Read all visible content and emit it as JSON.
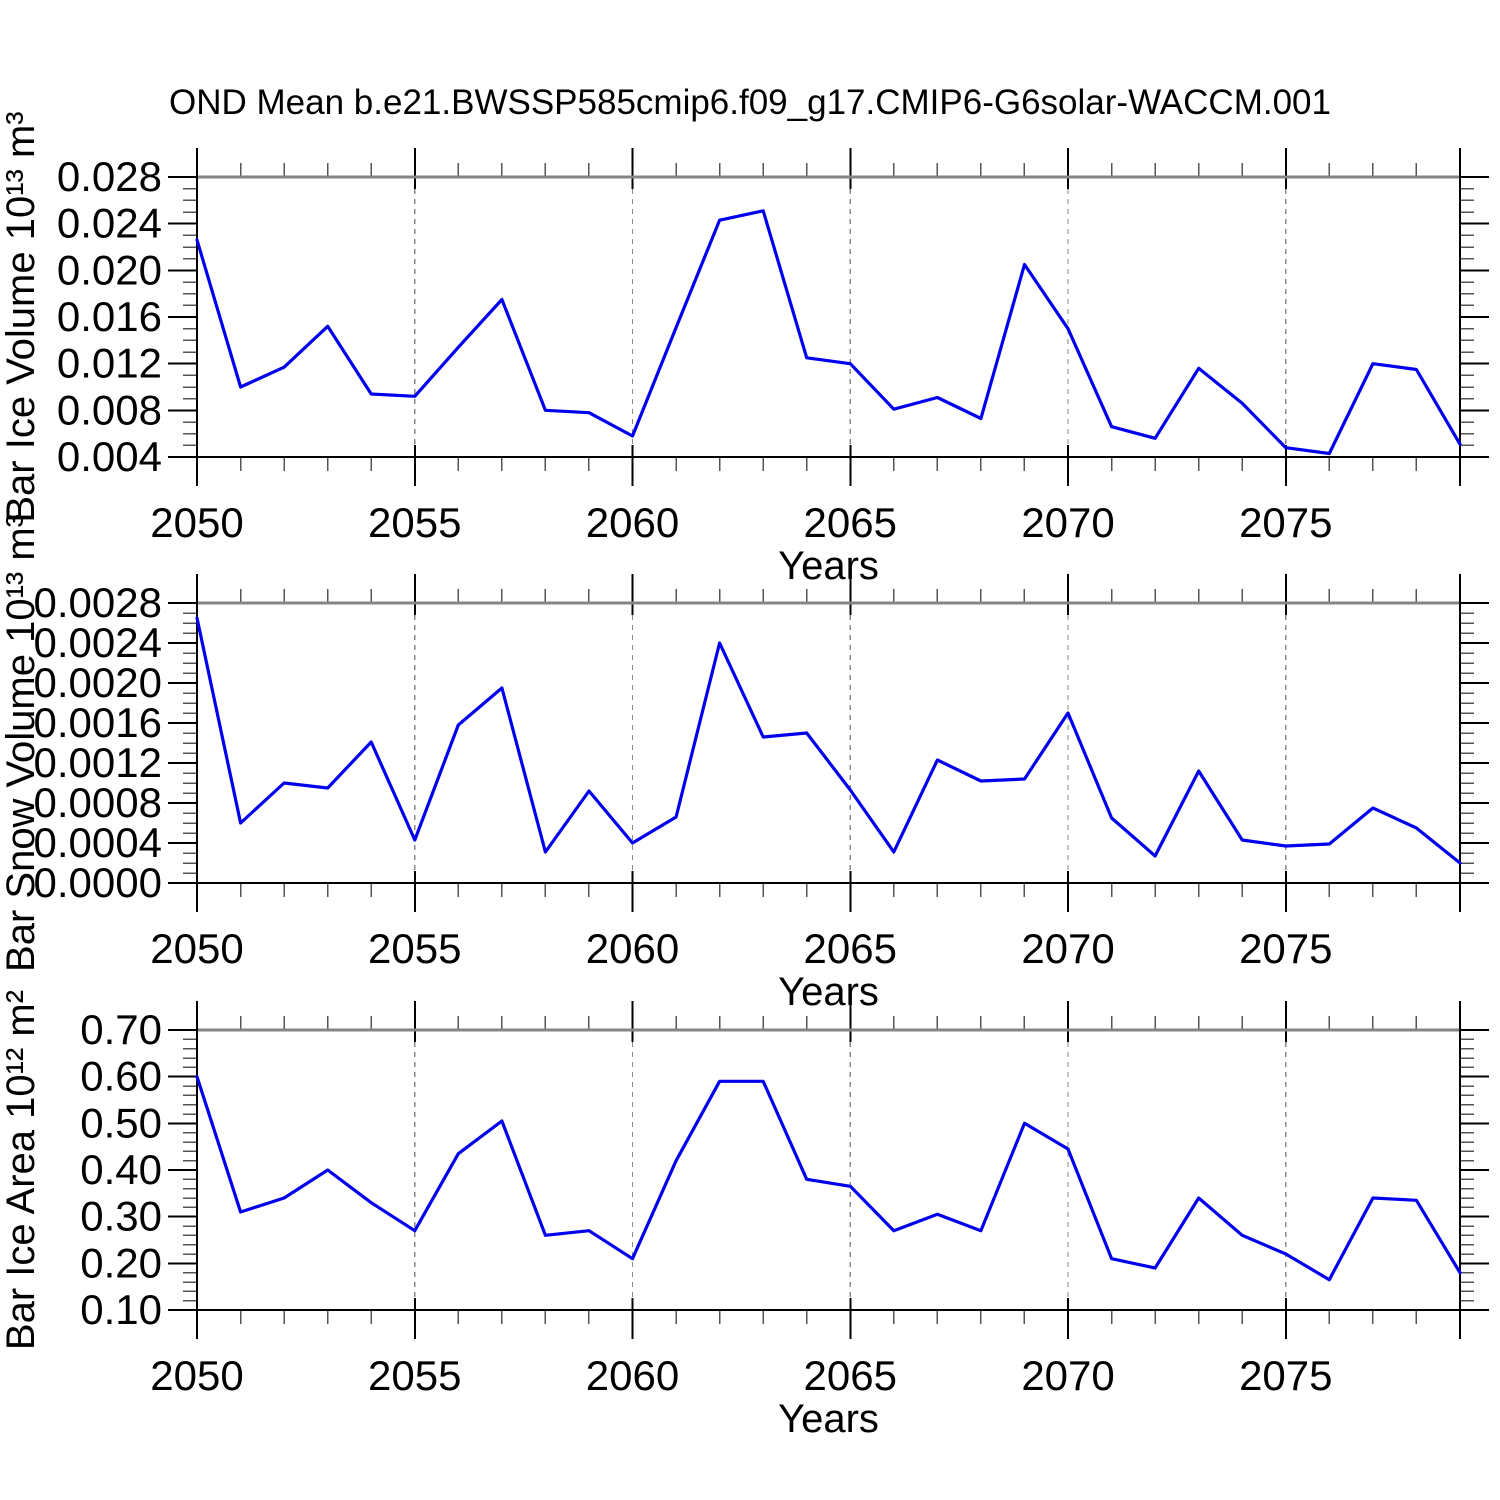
{
  "page": {
    "title": "OND Mean b.e21.BWSSP585cmip6.f09_g17.CMIP6-G6solar-WACCM.001"
  },
  "style": {
    "line_color": "#0000ee",
    "axis_color": "#000000",
    "top_axis_color": "#858585",
    "grid_color": "#8a8a8a",
    "minor_tick_color": "#555555",
    "major_tick_color": "#000000"
  },
  "chart_data": [
    {
      "name": "ice-volume-chart",
      "type": "line",
      "title": "",
      "ylabel": "Bar Ice Volume 10¹³ m³",
      "xlabel": "Years",
      "x": [
        2050,
        2051,
        2052,
        2053,
        2054,
        2055,
        2056,
        2057,
        2058,
        2059,
        2060,
        2061,
        2062,
        2063,
        2064,
        2065,
        2066,
        2067,
        2068,
        2069,
        2070,
        2071,
        2072,
        2073,
        2074,
        2075,
        2076,
        2077,
        2078,
        2079
      ],
      "values": [
        0.0226,
        0.01,
        0.0117,
        0.0152,
        0.0094,
        0.0092,
        0.0134,
        0.0175,
        0.008,
        0.0078,
        0.0058,
        0.0151,
        0.0243,
        0.0251,
        0.0125,
        0.012,
        0.0081,
        0.0091,
        0.0073,
        0.0205,
        0.015,
        0.0066,
        0.0056,
        0.0116,
        0.0086,
        0.0048,
        0.0043,
        0.012,
        0.0115,
        0.0051
      ],
      "ylim": [
        0.004,
        0.028
      ],
      "ytick_labels": [
        "0.004",
        "0.008",
        "0.012",
        "0.016",
        "0.020",
        "0.024",
        "0.028"
      ],
      "ytick_major_step": 0.004,
      "ytick_minor_step": 0.001,
      "ytick_decimals": 3,
      "xlim": [
        2050,
        2079
      ],
      "xticks_labeled": [
        2050,
        2055,
        2060,
        2065,
        2070,
        2075
      ],
      "grid_years": [
        2055,
        2060,
        2065,
        2070,
        2075
      ],
      "grid": "vertical-dashed",
      "legend": "none"
    },
    {
      "name": "snow-volume-chart",
      "type": "line",
      "title": "",
      "ylabel": "Bar Snow Volume 10¹³ m³",
      "xlabel": "Years",
      "x": [
        2050,
        2051,
        2052,
        2053,
        2054,
        2055,
        2056,
        2057,
        2058,
        2059,
        2060,
        2061,
        2062,
        2063,
        2064,
        2065,
        2066,
        2067,
        2068,
        2069,
        2070,
        2071,
        2072,
        2073,
        2074,
        2075,
        2076,
        2077,
        2078,
        2079
      ],
      "values": [
        0.00265,
        0.0006,
        0.001,
        0.00095,
        0.00141,
        0.00043,
        0.00158,
        0.00195,
        0.00031,
        0.00092,
        0.0004,
        0.00066,
        0.0024,
        0.00146,
        0.0015,
        0.00093,
        0.00031,
        0.00123,
        0.00102,
        0.00104,
        0.0017,
        0.00065,
        0.00027,
        0.00112,
        0.00043,
        0.00037,
        0.00039,
        0.00075,
        0.00055,
        0.0002
      ],
      "ylim": [
        0.0,
        0.0028
      ],
      "ytick_labels": [
        "0.0000",
        "0.0004",
        "0.0008",
        "0.0012",
        "0.0016",
        "0.0020",
        "0.0024",
        "0.0028"
      ],
      "ytick_major_step": 0.0004,
      "ytick_minor_step": 0.0001,
      "ytick_decimals": 4,
      "xlim": [
        2050,
        2079
      ],
      "xticks_labeled": [
        2050,
        2055,
        2060,
        2065,
        2070,
        2075
      ],
      "grid_years": [
        2055,
        2060,
        2065,
        2070,
        2075
      ],
      "grid": "vertical-dashed",
      "legend": "none"
    },
    {
      "name": "ice-area-chart",
      "type": "line",
      "title": "",
      "ylabel": "Bar Ice Area 10¹² m²",
      "xlabel": "Years",
      "x": [
        2050,
        2051,
        2052,
        2053,
        2054,
        2055,
        2056,
        2057,
        2058,
        2059,
        2060,
        2061,
        2062,
        2063,
        2064,
        2065,
        2066,
        2067,
        2068,
        2069,
        2070,
        2071,
        2072,
        2073,
        2074,
        2075,
        2076,
        2077,
        2078,
        2079
      ],
      "values": [
        0.6,
        0.31,
        0.34,
        0.4,
        0.33,
        0.27,
        0.435,
        0.505,
        0.26,
        0.27,
        0.21,
        0.42,
        0.59,
        0.59,
        0.38,
        0.365,
        0.27,
        0.305,
        0.27,
        0.5,
        0.445,
        0.21,
        0.19,
        0.34,
        0.26,
        0.22,
        0.165,
        0.34,
        0.335,
        0.18
      ],
      "ylim": [
        0.1,
        0.7
      ],
      "ytick_labels": [
        "0.10",
        "0.20",
        "0.30",
        "0.40",
        "0.50",
        "0.60",
        "0.70"
      ],
      "ytick_major_step": 0.1,
      "ytick_minor_step": 0.02,
      "ytick_decimals": 2,
      "xlim": [
        2050,
        2079
      ],
      "xticks_labeled": [
        2050,
        2055,
        2060,
        2065,
        2070,
        2075
      ],
      "grid_years": [
        2055,
        2060,
        2065,
        2070,
        2075
      ],
      "grid": "vertical-dashed",
      "legend": "none"
    }
  ]
}
